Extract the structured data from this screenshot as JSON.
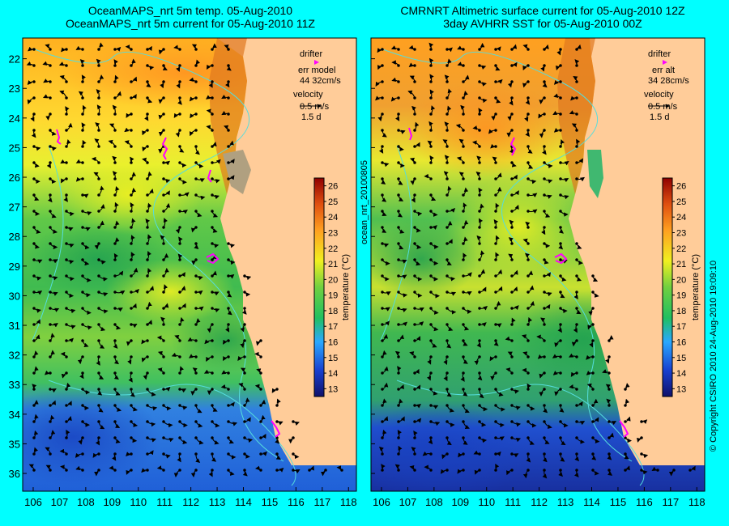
{
  "panels": [
    {
      "title_line1": "OceanMAPS_nrt 5m temp. 05-Aug-2010",
      "title_line2": "OceanMAPS_nrt 5m current for 05-Aug-2010 11Z",
      "legend": {
        "drifter": "drifter",
        "err_label": "err model",
        "err_values": "44 32cm/s",
        "velocity": "velocity",
        "scale": "0.5 m/s",
        "duration": "1.5 d"
      }
    },
    {
      "title_line1": "CMRNRT Altimetric surface current for 05-Aug-2010 12Z",
      "title_line2": "3day AVHRR SST for 05-Aug-2010 00Z",
      "legend": {
        "drifter": "drifter",
        "err_label": "err alt",
        "err_values": "34 28cm/s",
        "velocity": "velocity",
        "scale": "0.5 m/s",
        "duration": "1.5 d"
      }
    }
  ],
  "axes": {
    "lon_ticks": [
      106,
      107,
      108,
      109,
      110,
      111,
      112,
      113,
      114,
      115,
      116,
      117,
      118
    ],
    "lat_ticks": [
      22,
      23,
      24,
      25,
      26,
      27,
      28,
      29,
      30,
      31,
      32,
      33,
      34,
      35,
      36
    ],
    "lon_range": [
      105.6,
      118.3
    ],
    "lat_range": [
      21.3,
      36.6
    ]
  },
  "colorbar": {
    "label": "temperature (°C)",
    "ticks": [
      13,
      14,
      15,
      16,
      17,
      18,
      19,
      20,
      21,
      22,
      23,
      24,
      25,
      26
    ],
    "range": [
      12.5,
      26.5
    ]
  },
  "side_text": {
    "product_id": "ocean_nrt_20100805",
    "copyright": "© Copyright CSIRO 2010   24-Aug-2010 19:09:10"
  },
  "colors": {
    "background": "#00ffff",
    "land": "#ffcc99",
    "drifter": "#ff00ff",
    "contour": "#55dddd"
  }
}
